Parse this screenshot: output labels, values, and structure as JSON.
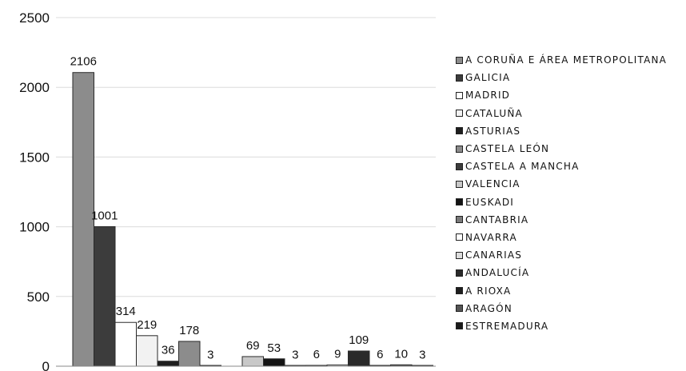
{
  "chart_data": {
    "type": "bar",
    "title": "",
    "xlabel": "",
    "ylabel": "",
    "ylim": [
      0,
      2500
    ],
    "yticks": [
      0,
      500,
      1000,
      1500,
      2000,
      2500
    ],
    "grid": true,
    "legend_position": "right",
    "series": [
      {
        "name": "A CORUÑA E ÁREA METROPOLITANA",
        "value": 2106,
        "label": "2106",
        "color": "#8c8c8c"
      },
      {
        "name": "GALICIA",
        "value": 1001,
        "label": "1001",
        "color": "#3c3c3c"
      },
      {
        "name": "MADRID",
        "value": 314,
        "label": "314",
        "color": "#ffffff"
      },
      {
        "name": "CATALUÑA",
        "value": 219,
        "label": "219",
        "color": "#f2f2f2"
      },
      {
        "name": "ASTURIAS",
        "value": 36,
        "label": "36",
        "color": "#1e1e1e"
      },
      {
        "name": "CASTELA LEÓN",
        "value": 178,
        "label": "178",
        "color": "#8c8c8c"
      },
      {
        "name": "CASTELA A MANCHA",
        "value": 3,
        "label": "3",
        "color": "#3c3c3c"
      },
      {
        "name": "VALENCIA",
        "value": 69,
        "label": "69",
        "color": "#c8c8c8"
      },
      {
        "name": "EUSKADI",
        "value": 53,
        "label": "53",
        "color": "#141414"
      },
      {
        "name": "CANTABRIA",
        "value": 3,
        "label": "3",
        "color": "#7a7a7a"
      },
      {
        "name": "NAVARRA",
        "value": 6,
        "label": "6",
        "color": "#ffffff"
      },
      {
        "name": "CANARIAS",
        "value": 9,
        "label": "9",
        "color": "#dcdcdc"
      },
      {
        "name": "ANDALUCÍA",
        "value": 109,
        "label": "109",
        "color": "#2a2a2a"
      },
      {
        "name": "A RIOXA",
        "value": 6,
        "label": "6",
        "color": "#1e1e1e"
      },
      {
        "name": "ARAGÓN",
        "value": 10,
        "label": "10",
        "color": "#555555"
      },
      {
        "name": "ESTREMADURA",
        "value": 3,
        "label": "3",
        "color": "#1a1a1a"
      }
    ]
  }
}
